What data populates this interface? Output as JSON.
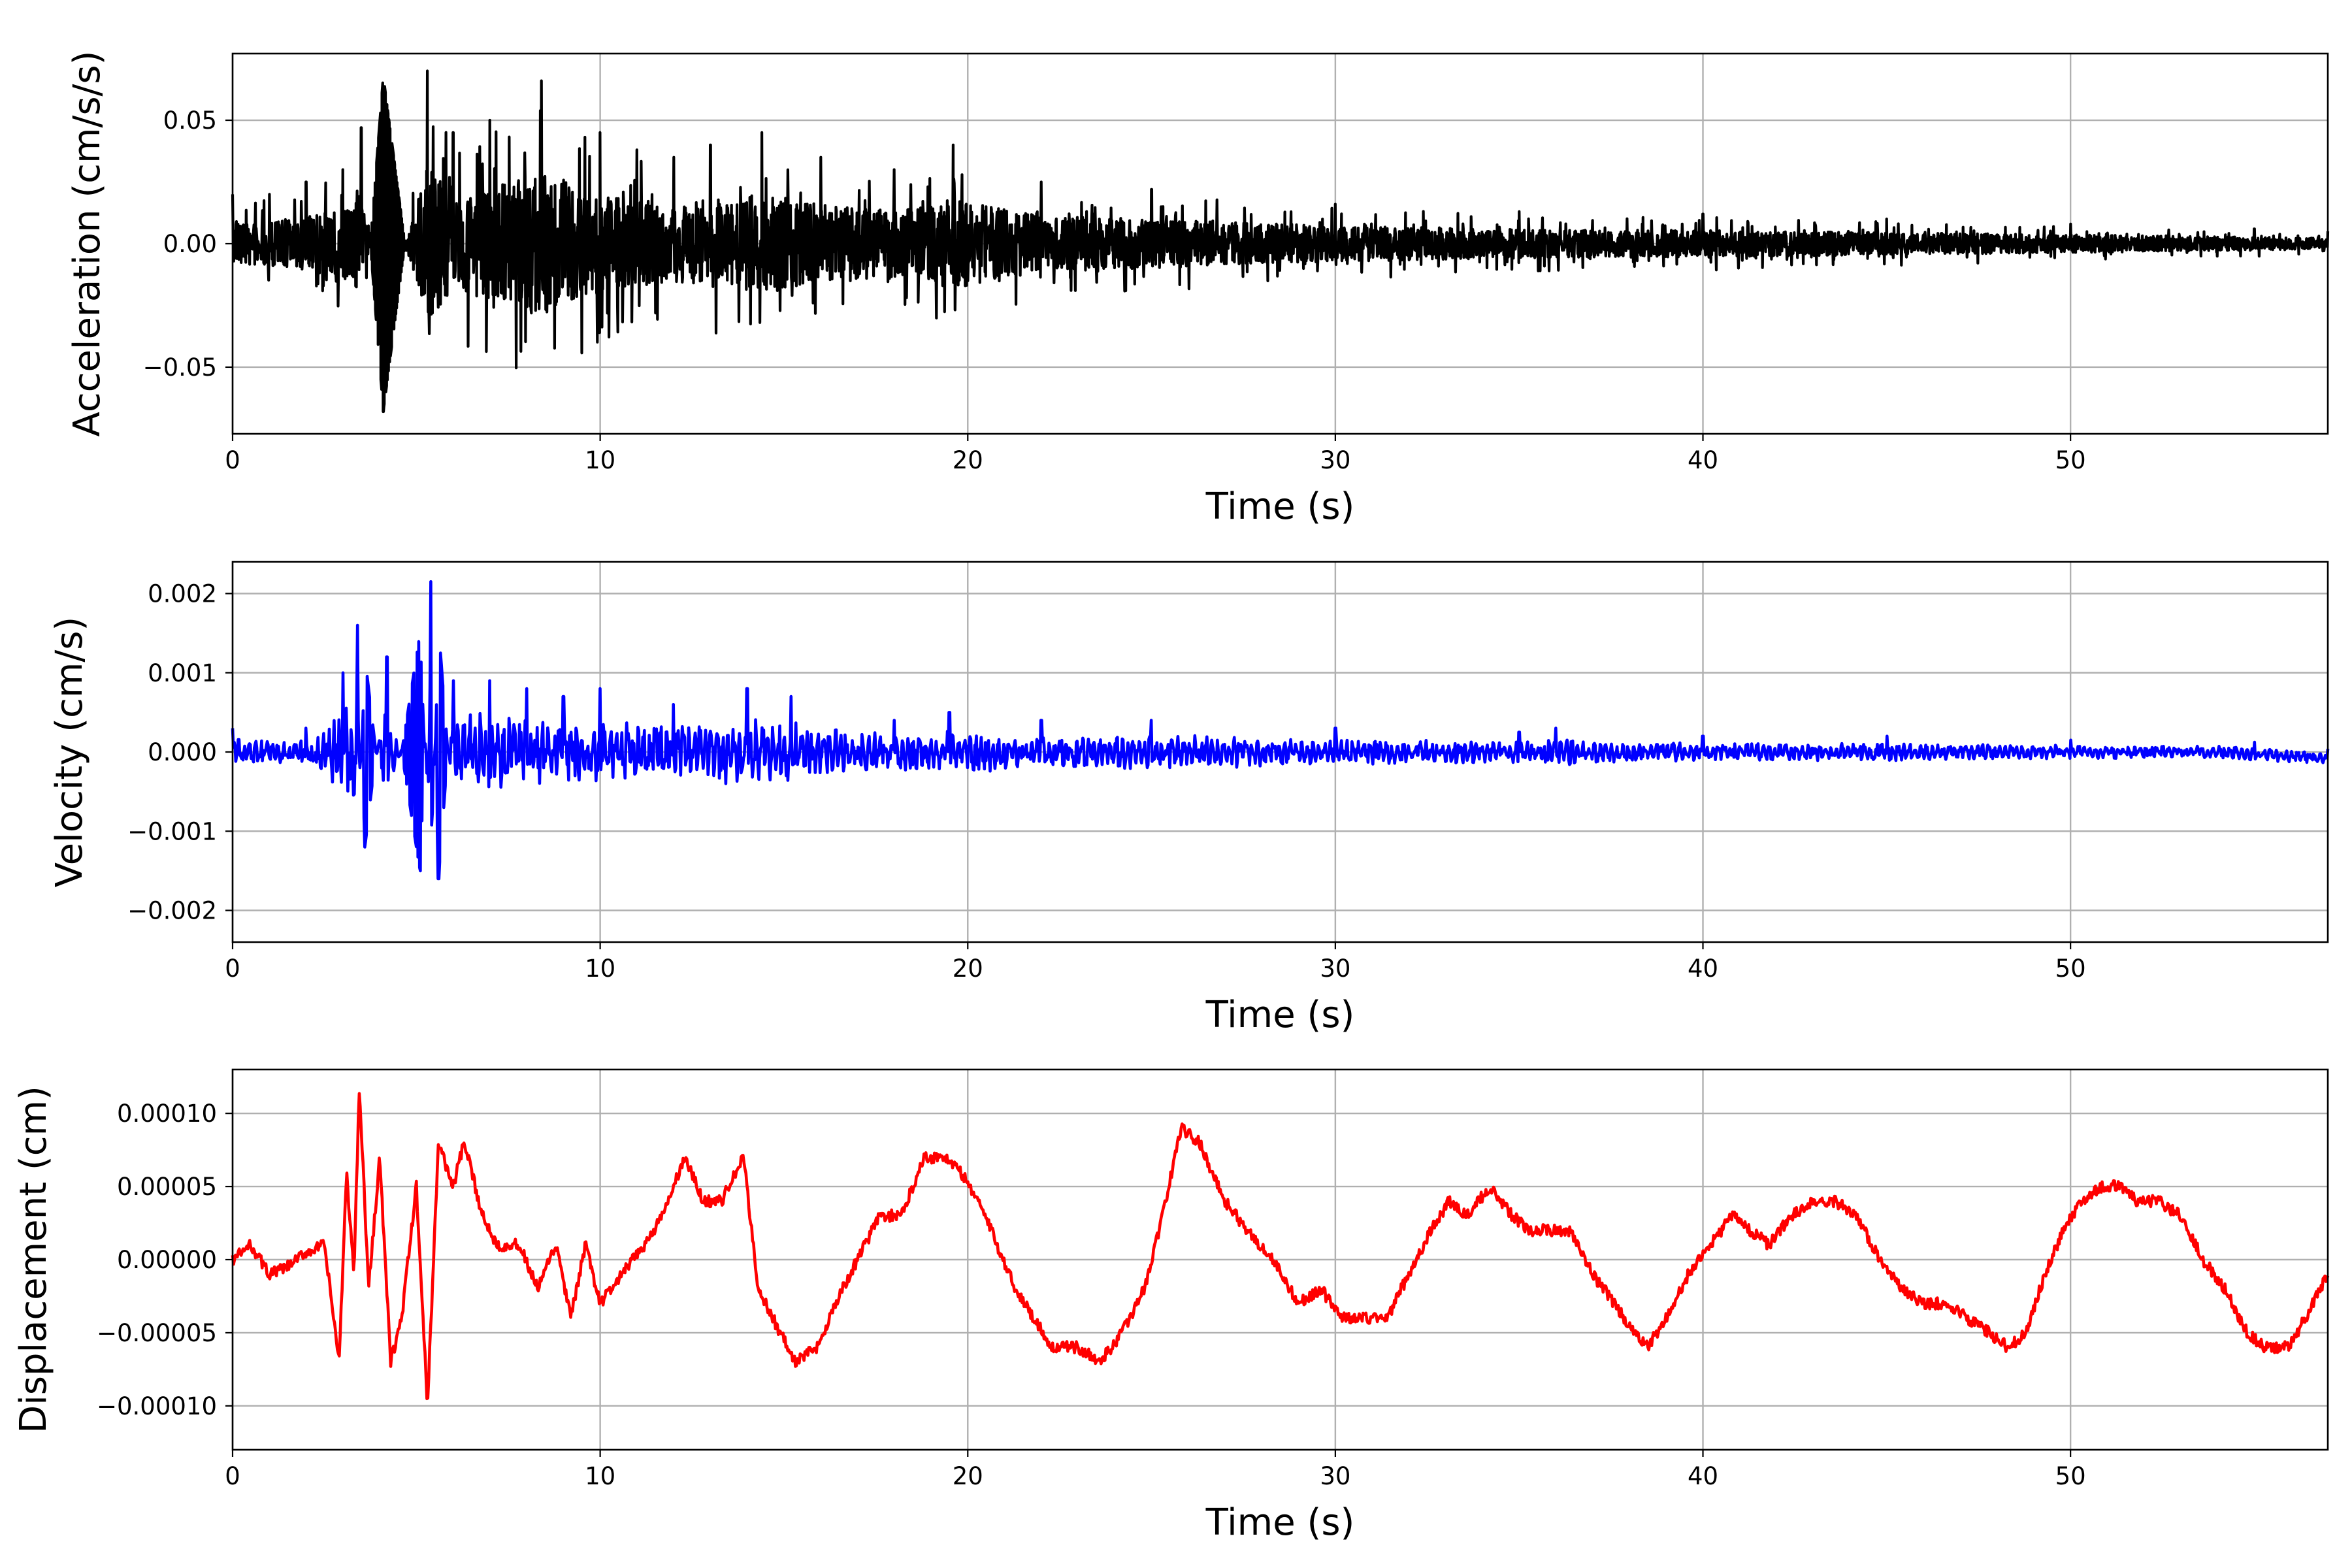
{
  "chart_data": [
    {
      "type": "line",
      "xlabel": "Time (s)",
      "ylabel": "Acceleration (cm/s/s)",
      "xlim": [
        0,
        57
      ],
      "ylim": [
        -0.077,
        0.077
      ],
      "xticks": [
        0,
        10,
        20,
        30,
        40,
        50
      ],
      "xtick_labels": [
        "0",
        "10",
        "20",
        "30",
        "40",
        "50"
      ],
      "yticks": [
        -0.05,
        0.0,
        0.05
      ],
      "ytick_labels": [
        "−0.05",
        "0.00",
        "0.05"
      ],
      "grid": true,
      "color": "#000000",
      "series": [
        {
          "x": [
            0,
            1,
            2,
            3,
            3.5,
            4.1,
            5.3,
            6,
            7,
            8.4,
            10,
            11,
            12,
            13,
            14.4,
            16,
            18,
            19.6,
            22,
            25,
            30,
            35,
            40,
            45,
            50,
            55,
            57
          ],
          "amplitude": [
            0.02,
            0.02,
            0.025,
            0.03,
            0.047,
            -0.068,
            0.07,
            0.045,
            0.05,
            0.066,
            0.045,
            0.038,
            0.035,
            0.04,
            0.045,
            0.035,
            0.03,
            0.04,
            0.025,
            0.022,
            0.016,
            0.013,
            0.012,
            0.01,
            0.008,
            0.006,
            0.005
          ]
        }
      ]
    },
    {
      "type": "line",
      "xlabel": "Time (s)",
      "ylabel": "Velocity (cm/s)",
      "xlim": [
        0,
        57
      ],
      "ylim": [
        -0.0024,
        0.0024
      ],
      "xticks": [
        0,
        10,
        20,
        30,
        40,
        50
      ],
      "xtick_labels": [
        "0",
        "10",
        "20",
        "30",
        "40",
        "50"
      ],
      "yticks": [
        -0.002,
        -0.001,
        0.0,
        0.001,
        0.002
      ],
      "ytick_labels": [
        "−0.002",
        "−0.001",
        "0.000",
        "0.001",
        "0.002"
      ],
      "grid": true,
      "color": "#0000ff",
      "series": [
        {
          "x": [
            0,
            2,
            3,
            3.4,
            3.6,
            4.2,
            5.1,
            5.4,
            5.6,
            6,
            7,
            8,
            9,
            10,
            12,
            14,
            15.2,
            18,
            19.5,
            22,
            25,
            30,
            35,
            36,
            40,
            45,
            50,
            55,
            57
          ],
          "amplitude": [
            0.0003,
            0.0003,
            0.001,
            0.0016,
            -0.0012,
            0.0012,
            -0.0015,
            0.00215,
            -0.0016,
            0.0009,
            0.0009,
            0.0008,
            0.0007,
            0.0008,
            0.0006,
            0.0008,
            0.0007,
            0.0004,
            0.0005,
            0.0004,
            0.0004,
            0.0003,
            0.00025,
            0.0003,
            0.0002,
            0.0002,
            0.00015,
            0.00015,
            0.00012
          ]
        }
      ]
    },
    {
      "type": "line",
      "xlabel": "Time (s)",
      "ylabel": "Displacement (cm)",
      "xlim": [
        0,
        57
      ],
      "ylim": [
        -0.00013,
        0.00013
      ],
      "xticks": [
        0,
        10,
        20,
        30,
        40,
        50
      ],
      "xtick_labels": [
        "0",
        "10",
        "20",
        "30",
        "40",
        "50"
      ],
      "yticks": [
        -0.0001,
        -5e-05,
        0.0,
        5e-05,
        0.0001
      ],
      "ytick_labels": [
        "−0.00010",
        "−0.00005",
        "0.00000",
        "0.00005",
        "0.00010"
      ],
      "grid": true,
      "color": "#ff0000",
      "series": [
        {
          "x": [
            0,
            0.5,
            1,
            1.5,
            2,
            2.5,
            2.9,
            3.1,
            3.3,
            3.45,
            3.7,
            4,
            4.3,
            4.6,
            5,
            5.3,
            5.6,
            6,
            6.3,
            6.8,
            7.2,
            7.8,
            8.3,
            8.8,
            9.2,
            9.6,
            10,
            10.6,
            11.2,
            11.7,
            12.3,
            12.8,
            13.3,
            13.9,
            14.3,
            14.7,
            15.3,
            15.9,
            16.4,
            17,
            17.6,
            18.2,
            18.8,
            19.4,
            19.8,
            20.3,
            20.8,
            21.3,
            21.8,
            22.3,
            23,
            23.6,
            24.2,
            24.8,
            25.3,
            25.8,
            26.3,
            27,
            27.6,
            28.3,
            29,
            29.6,
            30.2,
            30.8,
            31.4,
            32,
            32.6,
            33.1,
            33.6,
            34.2,
            34.8,
            35.3,
            35.8,
            36.4,
            37,
            37.6,
            38.1,
            38.5,
            39,
            39.6,
            40.2,
            40.8,
            41.3,
            41.8,
            42.4,
            43,
            43.6,
            44.2,
            44.8,
            45.4,
            46,
            46.6,
            47.2,
            47.8,
            48.3,
            48.8,
            49.3,
            49.8,
            50.3,
            50.8,
            51.3,
            51.8,
            52.4,
            53,
            53.6,
            54.2,
            54.8,
            55.3,
            55.9,
            56.4,
            57
          ],
          "y": [
            0,
            1e-05,
            -1e-05,
            -5e-06,
            5e-06,
            1e-05,
            -7e-05,
            6e-05,
            -1e-05,
            0.00012,
            -2e-05,
            7e-05,
            -7e-05,
            -4e-05,
            5e-05,
            -0.0001,
            8e-05,
            5e-05,
            8e-05,
            3e-05,
            1e-05,
            1e-05,
            -2e-05,
            1e-05,
            -4e-05,
            1e-05,
            -3e-05,
            -1e-05,
            1e-05,
            3e-05,
            7e-05,
            4e-05,
            4e-05,
            7e-05,
            -2e-05,
            -4e-05,
            -7e-05,
            -6e-05,
            -3e-05,
            0.0,
            3e-05,
            3e-05,
            7e-05,
            7e-05,
            6e-05,
            4e-05,
            1e-05,
            -2e-05,
            -4e-05,
            -6e-05,
            -6e-05,
            -7e-05,
            -5e-05,
            -2e-05,
            3e-05,
            9e-05,
            8e-05,
            4e-05,
            2e-05,
            0.0,
            -3e-05,
            -2e-05,
            -4e-05,
            -4e-05,
            -4e-05,
            -1e-05,
            2e-05,
            4e-05,
            3e-05,
            5e-05,
            3e-05,
            2e-05,
            2e-05,
            2e-05,
            -1e-05,
            -3e-05,
            -5e-05,
            -6e-05,
            -4e-05,
            -1e-05,
            1e-05,
            3e-05,
            2e-05,
            1e-05,
            3e-05,
            4e-05,
            4e-05,
            3e-05,
            0.0,
            -2e-05,
            -3e-05,
            -3e-05,
            -4e-05,
            -5e-05,
            -6e-05,
            -5e-05,
            -1e-05,
            2e-05,
            4e-05,
            5e-05,
            5e-05,
            4e-05,
            4e-05,
            3e-05,
            0.0,
            -2e-05,
            -5e-05,
            -6e-05,
            -6e-05,
            -4e-05,
            -1e-05
          ]
        }
      ]
    }
  ]
}
